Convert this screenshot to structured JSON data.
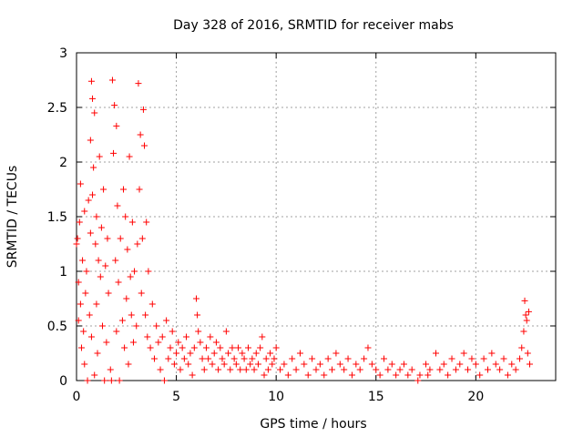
{
  "chart_data": {
    "type": "scatter",
    "title": "Day 328 of 2016, SRMTID for receiver mabs",
    "xlabel": "GPS time / hours",
    "ylabel": "SRMTID / TECUs",
    "xlim": [
      0,
      24
    ],
    "ylim": [
      0,
      3
    ],
    "xticks": [
      0,
      5,
      10,
      15,
      20
    ],
    "xtick_labels": [
      "0",
      "5",
      "10",
      "15",
      "20"
    ],
    "yticks": [
      0,
      0.5,
      1,
      1.5,
      2,
      2.5,
      3
    ],
    "ytick_labels": [
      "0",
      "0.5",
      "1",
      "1.5",
      "2",
      "2.5",
      "3"
    ],
    "grid": true,
    "marker": "+",
    "color": "#ff0000",
    "series": [
      {
        "name": "SRMTID",
        "points": [
          [
            0.0,
            1.25
          ],
          [
            0.05,
            1.3
          ],
          [
            0.1,
            0.55
          ],
          [
            0.1,
            0.9
          ],
          [
            0.15,
            1.45
          ],
          [
            0.2,
            0.7
          ],
          [
            0.2,
            1.8
          ],
          [
            0.25,
            0.3
          ],
          [
            0.3,
            1.1
          ],
          [
            0.35,
            0.45
          ],
          [
            0.4,
            1.55
          ],
          [
            0.4,
            0.15
          ],
          [
            0.45,
            0.8
          ],
          [
            0.5,
            1.0
          ],
          [
            0.55,
            0.0
          ],
          [
            0.6,
            1.65
          ],
          [
            0.65,
            0.6
          ],
          [
            0.7,
            2.2
          ],
          [
            0.7,
            1.35
          ],
          [
            0.75,
            2.74
          ],
          [
            0.75,
            0.4
          ],
          [
            0.8,
            2.58
          ],
          [
            0.8,
            1.7
          ],
          [
            0.85,
            1.95
          ],
          [
            0.9,
            2.45
          ],
          [
            0.9,
            0.05
          ],
          [
            0.95,
            1.25
          ],
          [
            1.0,
            1.5
          ],
          [
            1.0,
            0.7
          ],
          [
            1.05,
            0.25
          ],
          [
            1.1,
            1.1
          ],
          [
            1.15,
            2.05
          ],
          [
            1.2,
            0.95
          ],
          [
            1.25,
            1.4
          ],
          [
            1.3,
            0.5
          ],
          [
            1.35,
            1.75
          ],
          [
            1.4,
            0.0
          ],
          [
            1.45,
            1.05
          ],
          [
            1.5,
            0.35
          ],
          [
            1.55,
            1.3
          ],
          [
            1.6,
            0.8
          ],
          [
            1.7,
            0.1
          ],
          [
            1.75,
            0.0
          ],
          [
            1.8,
            2.75
          ],
          [
            1.85,
            2.08
          ],
          [
            1.9,
            2.52
          ],
          [
            1.95,
            1.1
          ],
          [
            2.0,
            2.33
          ],
          [
            2.0,
            0.45
          ],
          [
            2.05,
            1.6
          ],
          [
            2.1,
            0.9
          ],
          [
            2.15,
            0.0
          ],
          [
            2.2,
            1.3
          ],
          [
            2.3,
            0.55
          ],
          [
            2.35,
            1.75
          ],
          [
            2.4,
            0.3
          ],
          [
            2.45,
            1.5
          ],
          [
            2.5,
            0.75
          ],
          [
            2.55,
            1.2
          ],
          [
            2.6,
            0.15
          ],
          [
            2.65,
            2.05
          ],
          [
            2.7,
            0.95
          ],
          [
            2.75,
            0.6
          ],
          [
            2.8,
            1.45
          ],
          [
            2.85,
            0.35
          ],
          [
            2.9,
            1.0
          ],
          [
            3.0,
            0.5
          ],
          [
            3.05,
            1.25
          ],
          [
            3.1,
            2.72
          ],
          [
            3.15,
            1.75
          ],
          [
            3.2,
            2.25
          ],
          [
            3.25,
            0.8
          ],
          [
            3.3,
            1.3
          ],
          [
            3.35,
            2.48
          ],
          [
            3.4,
            2.15
          ],
          [
            3.45,
            0.6
          ],
          [
            3.5,
            1.45
          ],
          [
            3.55,
            0.4
          ],
          [
            3.6,
            1.0
          ],
          [
            3.7,
            0.3
          ],
          [
            3.8,
            0.7
          ],
          [
            3.9,
            0.2
          ],
          [
            4.0,
            0.5
          ],
          [
            4.1,
            0.35
          ],
          [
            4.2,
            0.1
          ],
          [
            4.3,
            0.4
          ],
          [
            4.4,
            0.0
          ],
          [
            4.5,
            0.55
          ],
          [
            4.6,
            0.2
          ],
          [
            4.7,
            0.3
          ],
          [
            4.8,
            0.45
          ],
          [
            4.9,
            0.15
          ],
          [
            5.0,
            0.25
          ],
          [
            5.1,
            0.35
          ],
          [
            5.2,
            0.1
          ],
          [
            5.3,
            0.3
          ],
          [
            5.4,
            0.2
          ],
          [
            5.5,
            0.4
          ],
          [
            5.6,
            0.15
          ],
          [
            5.7,
            0.25
          ],
          [
            5.8,
            0.05
          ],
          [
            5.9,
            0.3
          ],
          [
            6.0,
            0.75
          ],
          [
            6.05,
            0.6
          ],
          [
            6.1,
            0.45
          ],
          [
            6.2,
            0.35
          ],
          [
            6.3,
            0.2
          ],
          [
            6.4,
            0.1
          ],
          [
            6.5,
            0.3
          ],
          [
            6.6,
            0.2
          ],
          [
            6.7,
            0.4
          ],
          [
            6.8,
            0.15
          ],
          [
            6.9,
            0.25
          ],
          [
            7.0,
            0.35
          ],
          [
            7.1,
            0.1
          ],
          [
            7.2,
            0.3
          ],
          [
            7.3,
            0.2
          ],
          [
            7.4,
            0.15
          ],
          [
            7.5,
            0.45
          ],
          [
            7.6,
            0.25
          ],
          [
            7.7,
            0.1
          ],
          [
            7.8,
            0.3
          ],
          [
            7.9,
            0.2
          ],
          [
            8.0,
            0.15
          ],
          [
            8.1,
            0.3
          ],
          [
            8.2,
            0.1
          ],
          [
            8.3,
            0.25
          ],
          [
            8.4,
            0.2
          ],
          [
            8.5,
            0.1
          ],
          [
            8.6,
            0.3
          ],
          [
            8.7,
            0.15
          ],
          [
            8.8,
            0.2
          ],
          [
            8.9,
            0.1
          ],
          [
            9.0,
            0.25
          ],
          [
            9.1,
            0.15
          ],
          [
            9.2,
            0.3
          ],
          [
            9.3,
            0.4
          ],
          [
            9.4,
            0.05
          ],
          [
            9.5,
            0.2
          ],
          [
            9.6,
            0.1
          ],
          [
            9.7,
            0.25
          ],
          [
            9.8,
            0.15
          ],
          [
            9.9,
            0.2
          ],
          [
            10.0,
            0.3
          ],
          [
            10.2,
            0.1
          ],
          [
            10.4,
            0.15
          ],
          [
            10.6,
            0.05
          ],
          [
            10.8,
            0.2
          ],
          [
            11.0,
            0.1
          ],
          [
            11.2,
            0.25
          ],
          [
            11.4,
            0.15
          ],
          [
            11.6,
            0.05
          ],
          [
            11.8,
            0.2
          ],
          [
            12.0,
            0.1
          ],
          [
            12.2,
            0.15
          ],
          [
            12.4,
            0.05
          ],
          [
            12.6,
            0.2
          ],
          [
            12.8,
            0.1
          ],
          [
            13.0,
            0.25
          ],
          [
            13.2,
            0.15
          ],
          [
            13.4,
            0.1
          ],
          [
            13.6,
            0.2
          ],
          [
            13.8,
            0.05
          ],
          [
            14.0,
            0.15
          ],
          [
            14.2,
            0.1
          ],
          [
            14.4,
            0.2
          ],
          [
            14.6,
            0.3
          ],
          [
            14.8,
            0.15
          ],
          [
            15.0,
            0.1
          ],
          [
            15.2,
            0.05
          ],
          [
            15.4,
            0.2
          ],
          [
            15.6,
            0.1
          ],
          [
            15.8,
            0.15
          ],
          [
            16.0,
            0.05
          ],
          [
            16.2,
            0.1
          ],
          [
            16.4,
            0.15
          ],
          [
            16.6,
            0.05
          ],
          [
            16.8,
            0.1
          ],
          [
            17.1,
            0.0
          ],
          [
            17.2,
            0.05
          ],
          [
            17.5,
            0.15
          ],
          [
            17.6,
            0.05
          ],
          [
            17.7,
            0.1
          ],
          [
            18.0,
            0.25
          ],
          [
            18.2,
            0.1
          ],
          [
            18.4,
            0.15
          ],
          [
            18.6,
            0.05
          ],
          [
            18.8,
            0.2
          ],
          [
            19.0,
            0.1
          ],
          [
            19.2,
            0.15
          ],
          [
            19.4,
            0.25
          ],
          [
            19.6,
            0.1
          ],
          [
            19.8,
            0.2
          ],
          [
            20.0,
            0.15
          ],
          [
            20.2,
            0.05
          ],
          [
            20.4,
            0.2
          ],
          [
            20.6,
            0.1
          ],
          [
            20.8,
            0.25
          ],
          [
            21.0,
            0.15
          ],
          [
            21.2,
            0.1
          ],
          [
            21.4,
            0.2
          ],
          [
            21.6,
            0.05
          ],
          [
            21.8,
            0.15
          ],
          [
            22.0,
            0.1
          ],
          [
            22.2,
            0.2
          ],
          [
            22.3,
            0.3
          ],
          [
            22.4,
            0.45
          ],
          [
            22.45,
            0.73
          ],
          [
            22.5,
            0.6
          ],
          [
            22.55,
            0.55
          ],
          [
            22.6,
            0.25
          ],
          [
            22.65,
            0.63
          ],
          [
            22.7,
            0.15
          ]
        ]
      }
    ]
  }
}
